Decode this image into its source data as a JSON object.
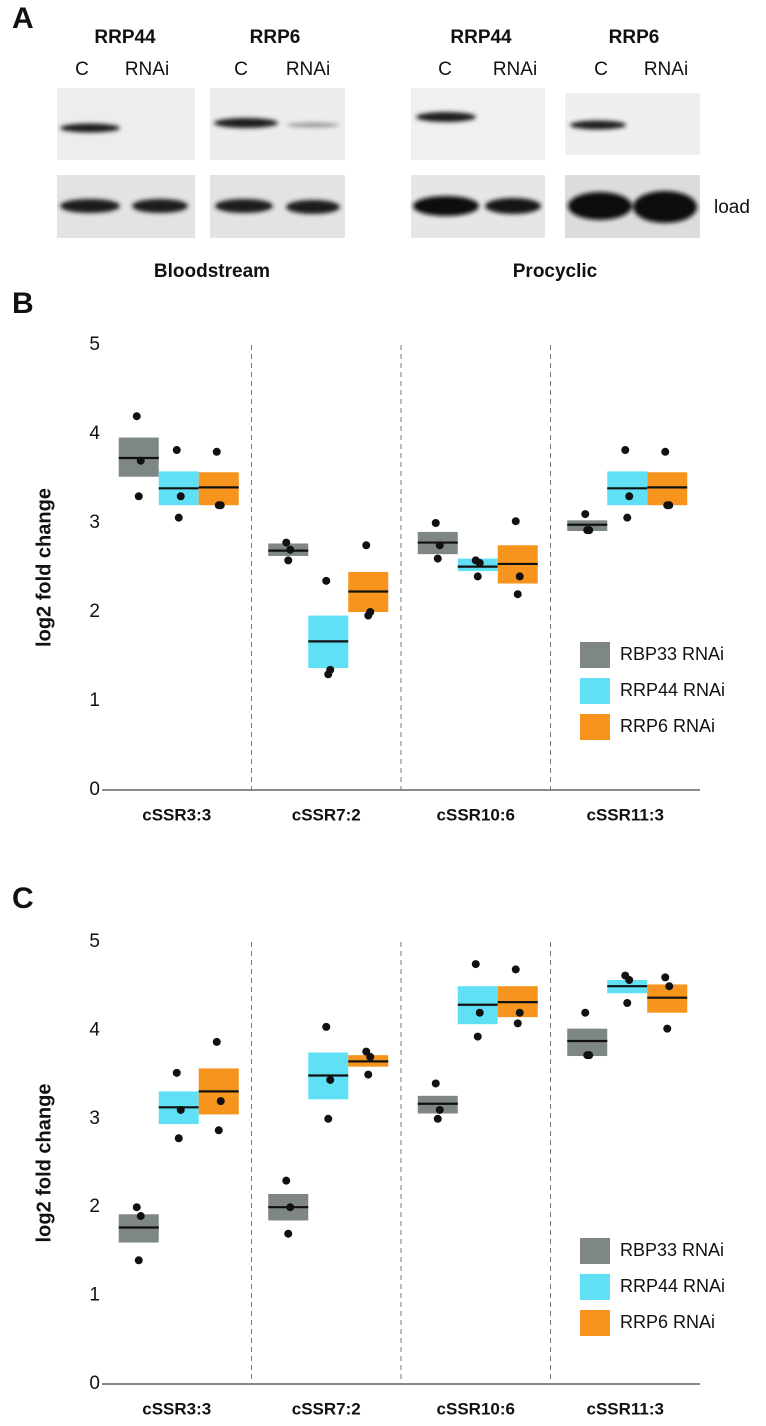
{
  "blot": {
    "panel": "A",
    "groups": [
      {
        "protein": "RRP44",
        "lanes": [
          "C",
          "RNAi"
        ]
      },
      {
        "protein": "RRP6",
        "lanes": [
          "C",
          "RNAi"
        ]
      },
      {
        "protein": "RRP44",
        "lanes": [
          "C",
          "RNAi"
        ]
      },
      {
        "protein": "RRP6",
        "lanes": [
          "C",
          "RNAi"
        ]
      }
    ],
    "load_label": "load",
    "conditions": [
      "Bloodstream",
      "Procyclic"
    ]
  },
  "chart_data": [
    {
      "type": "crossbar",
      "panel": "B",
      "ylabel": "log2 fold change",
      "categories": [
        "cSSR3:3",
        "cSSR7:2",
        "cSSR10:6",
        "cSSR11:3"
      ],
      "ylim": [
        0,
        5
      ],
      "yticks": [
        0,
        1,
        2,
        3,
        4,
        5
      ],
      "legend": "right",
      "series": [
        {
          "name": "RBP33 RNAi",
          "color": "#7f8686",
          "values": [
            3.73,
            2.69,
            2.78,
            2.98
          ],
          "lower": [
            3.52,
            2.63,
            2.65,
            2.91
          ],
          "upper": [
            3.96,
            2.77,
            2.9,
            3.03
          ],
          "points": [
            [
              4.2,
              3.7,
              3.3
            ],
            [
              2.78,
              2.7,
              2.58
            ],
            [
              3.0,
              2.75,
              2.6
            ],
            [
              3.1,
              2.92,
              2.92
            ]
          ]
        },
        {
          "name": "RRP44 RNAi",
          "color": "#5fe0f5",
          "values": [
            3.39,
            1.67,
            2.51,
            3.39
          ],
          "lower": [
            3.2,
            1.37,
            2.46,
            3.2
          ],
          "upper": [
            3.58,
            1.96,
            2.6,
            3.58
          ],
          "points": [
            [
              3.82,
              3.3,
              3.06
            ],
            [
              2.35,
              1.35,
              1.3
            ],
            [
              2.58,
              2.55,
              2.4
            ],
            [
              3.82,
              3.3,
              3.06
            ]
          ]
        },
        {
          "name": "RRP6 RNAi",
          "color": "#f7941d",
          "values": [
            3.4,
            2.23,
            2.54,
            3.4
          ],
          "lower": [
            3.2,
            2.0,
            2.32,
            3.2
          ],
          "upper": [
            3.57,
            2.45,
            2.75,
            3.57
          ],
          "points": [
            [
              3.8,
              3.2,
              3.2
            ],
            [
              2.75,
              2.0,
              1.96
            ],
            [
              3.02,
              2.4,
              2.2
            ],
            [
              3.8,
              3.2,
              3.2
            ]
          ]
        }
      ]
    },
    {
      "type": "crossbar",
      "panel": "C",
      "ylabel": "log2 fold change",
      "categories": [
        "cSSR3:3",
        "cSSR7:2",
        "cSSR10:6",
        "cSSR11:3"
      ],
      "ylim": [
        0,
        5
      ],
      "yticks": [
        0,
        1,
        2,
        3,
        4,
        5
      ],
      "legend": "right",
      "series": [
        {
          "name": "RBP33 RNAi",
          "color": "#7f8686",
          "values": [
            1.77,
            2.0,
            3.17,
            3.88
          ],
          "lower": [
            1.6,
            1.85,
            3.06,
            3.71
          ],
          "upper": [
            1.92,
            2.15,
            3.26,
            4.02
          ],
          "points": [
            [
              2.0,
              1.9,
              1.4
            ],
            [
              2.3,
              2.0,
              1.7
            ],
            [
              3.4,
              3.1,
              3.0
            ],
            [
              4.2,
              3.72,
              3.72
            ]
          ]
        },
        {
          "name": "RRP44 RNAi",
          "color": "#5fe0f5",
          "values": [
            3.13,
            3.49,
            4.29,
            4.5
          ],
          "lower": [
            2.94,
            3.22,
            4.07,
            4.42
          ],
          "upper": [
            3.31,
            3.75,
            4.5,
            4.57
          ],
          "points": [
            [
              3.52,
              3.1,
              2.78
            ],
            [
              4.04,
              3.44,
              3.0
            ],
            [
              4.75,
              4.2,
              3.93
            ],
            [
              4.62,
              4.57,
              4.31
            ]
          ]
        },
        {
          "name": "RRP6 RNAi",
          "color": "#f7941d",
          "values": [
            3.31,
            3.65,
            4.32,
            4.37
          ],
          "lower": [
            3.05,
            3.59,
            4.15,
            4.2
          ],
          "upper": [
            3.57,
            3.72,
            4.5,
            4.52
          ],
          "points": [
            [
              3.87,
              3.2,
              2.87
            ],
            [
              3.76,
              3.7,
              3.5
            ],
            [
              4.69,
              4.2,
              4.08
            ],
            [
              4.6,
              4.5,
              4.02
            ]
          ]
        }
      ]
    }
  ]
}
